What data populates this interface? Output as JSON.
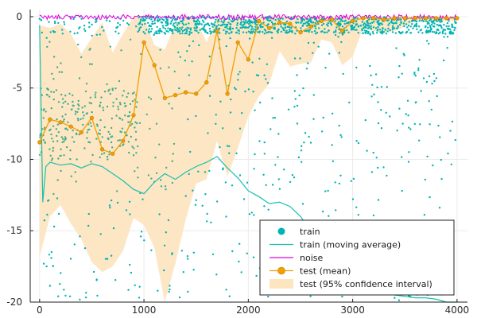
{
  "chart_data": {
    "type": "scatter",
    "title": "",
    "xlabel": "",
    "ylabel": "",
    "xlim": [
      -90,
      4100
    ],
    "ylim": [
      -20,
      0.5
    ],
    "y_direction": "inverted",
    "grid": true,
    "legend_placement": "bottom-right",
    "x_ticks": [
      0,
      1000,
      2000,
      3000,
      4000
    ],
    "x_tick_labels": [
      "0",
      "1000",
      "2000",
      "3000",
      "4000"
    ],
    "y_ticks": [
      0,
      -5,
      -10,
      -15,
      -20
    ],
    "y_tick_labels": [
      "0",
      "-5",
      "-10",
      "-15",
      "-20"
    ],
    "colors": {
      "train": "#00b3b3",
      "train_scatter_dense": "#3fae8c",
      "moving_average": "#18c0b0",
      "noise": "#e100e1",
      "test_mean": "#f0a000",
      "ci_band": "#fde5c0"
    },
    "legend": [
      {
        "key": "train",
        "label": "train",
        "marker": "circle"
      },
      {
        "key": "moving_average",
        "label": "train (moving average)",
        "marker": "line"
      },
      {
        "key": "noise",
        "label": "noise",
        "marker": "line"
      },
      {
        "key": "test_mean",
        "label": "test (mean)",
        "marker": "line-circle"
      },
      {
        "key": "ci_band",
        "label": "test (95% confidence interval)",
        "marker": "band"
      }
    ],
    "series": [
      {
        "name": "test (mean)",
        "x": [
          0,
          100,
          200,
          300,
          400,
          500,
          600,
          700,
          800,
          900,
          1000,
          1100,
          1200,
          1300,
          1400,
          1500,
          1600,
          1700,
          1800,
          1900,
          2000,
          2100,
          2200,
          2300,
          2400,
          2500,
          2600,
          2700,
          2800,
          2900,
          3000,
          3100,
          3200,
          3300,
          3400,
          3500,
          3600,
          3700,
          3800,
          3900,
          4000
        ],
        "values": [
          -8.8,
          -7.2,
          -7.4,
          -7.7,
          -8.1,
          -7.1,
          -9.3,
          -9.6,
          -8.7,
          -6.9,
          -1.8,
          -3.4,
          -5.7,
          -5.5,
          -5.3,
          -5.4,
          -4.6,
          -1.0,
          -5.4,
          -1.8,
          -3.0,
          -0.3,
          -0.8,
          -0.4,
          -0.5,
          -1.1,
          -0.7,
          -0.3,
          -0.2,
          -1.0,
          -0.3,
          -0.1,
          -0.1,
          -0.2,
          -0.1,
          -0.1,
          -0.1,
          -0.1,
          -0.1,
          -0.1,
          -0.1
        ]
      },
      {
        "name": "test (95% confidence interval)",
        "x": [
          0,
          100,
          200,
          300,
          400,
          500,
          600,
          700,
          800,
          900,
          1000,
          1100,
          1200,
          1300,
          1400,
          1500,
          1600,
          1700,
          1800,
          1900,
          2000,
          2100,
          2200,
          2300,
          2400,
          2500,
          2600,
          2700,
          2800,
          2900,
          3000,
          3100,
          3200,
          3300,
          3400,
          3500,
          3600,
          3700,
          3800,
          3900,
          4000
        ],
        "upper": [
          -0.6,
          -0.8,
          -0.5,
          -1.2,
          -2.6,
          -1.5,
          -0.4,
          -2.5,
          -1.2,
          0.0,
          0.0,
          -2.0,
          -2.3,
          -0.5,
          0.0,
          -0.2,
          -1.8,
          0.0,
          -0.3,
          0.0,
          -0.2,
          0.0,
          0.0,
          0.0,
          0.0,
          0.0,
          0.0,
          0.0,
          0.0,
          0.0,
          0.0,
          0.0,
          0.0,
          0.0,
          0.0,
          0.0,
          0.0,
          0.0,
          0.0,
          0.0,
          0.0
        ],
        "lower": [
          -16.8,
          -14.0,
          -13.2,
          -14.5,
          -15.6,
          -17.2,
          -17.9,
          -17.5,
          -16.4,
          -14.1,
          -14.6,
          -16.2,
          -20.0,
          -17.3,
          -14.2,
          -11.7,
          -11.4,
          -8.7,
          -11.2,
          -9.2,
          -7.0,
          -5.6,
          -4.7,
          -2.4,
          -3.5,
          -3.3,
          -3.2,
          -1.6,
          -1.8,
          -3.4,
          -2.8,
          -0.8,
          -1.0,
          -1.1,
          -1.0,
          -0.7,
          -0.3,
          -0.3,
          -0.4,
          -0.3,
          -0.3
        ]
      },
      {
        "name": "train (moving average)",
        "x": [
          0,
          30,
          60,
          100,
          200,
          300,
          400,
          500,
          600,
          700,
          800,
          900,
          1000,
          1100,
          1200,
          1300,
          1400,
          1500,
          1600,
          1700,
          1800,
          1900,
          2000,
          2100,
          2200,
          2300,
          2400,
          2500,
          2600,
          2700,
          2800,
          2900,
          3000,
          3100,
          3200,
          3300,
          3400,
          3500,
          3600,
          3700,
          3800,
          3900,
          4000
        ],
        "values": [
          -0.6,
          -13.0,
          -10.5,
          -10.2,
          -10.4,
          -10.3,
          -10.6,
          -10.3,
          -10.5,
          -11.0,
          -11.5,
          -12.1,
          -12.4,
          -11.6,
          -11.0,
          -11.4,
          -10.9,
          -10.5,
          -10.2,
          -9.8,
          -10.6,
          -11.3,
          -12.2,
          -12.6,
          -13.1,
          -13.0,
          -13.3,
          -14.0,
          -15.0,
          -15.8,
          -16.5,
          -17.2,
          -17.9,
          -18.4,
          -18.9,
          -19.2,
          -19.5,
          -19.6,
          -19.7,
          -19.7,
          -19.8,
          -20.0,
          -20.0
        ]
      },
      {
        "name": "noise",
        "x": [
          0,
          4000
        ],
        "values": [
          0.1,
          0.1
        ]
      }
    ]
  }
}
